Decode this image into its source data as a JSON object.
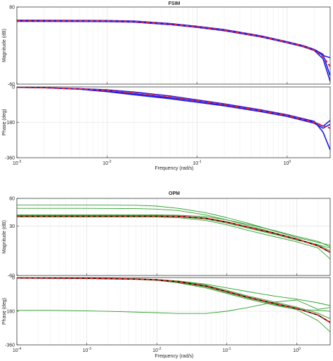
{
  "chart_data": [
    {
      "type": "line",
      "title": "FSIM",
      "xlabel": "Frequency  (rad/s)",
      "xscale": "log",
      "xlim": [
        0.001,
        3
      ],
      "x_ticks": [
        {
          "value": 0.001,
          "base": "10",
          "exp": "-3"
        },
        {
          "value": 0.01,
          "base": "10",
          "exp": "-2"
        },
        {
          "value": 0.1,
          "base": "10",
          "exp": "-1"
        },
        {
          "value": 1,
          "base": "10",
          "exp": "0"
        }
      ],
      "grid": true,
      "series_colors": {
        "nominal": "#e8262a",
        "uncertain": "#1b1bea"
      },
      "panels": [
        {
          "name": "magnitude",
          "ylabel": "Magnitude (dB)",
          "ylim": [
            -60,
            80
          ],
          "y_ticks": [
            {
              "value": 80,
              "label": "80"
            },
            {
              "value": -60,
              "label": "-60"
            }
          ],
          "series": [
            {
              "role": "nominal",
              "style": "dashed",
              "x": [
                0.001,
                0.01,
                0.02,
                0.05,
                0.1,
                0.2,
                0.5,
                1,
                1.5,
                2,
                2.5,
                3
              ],
              "y": [
                55,
                54.5,
                53.5,
                49,
                44,
                38,
                27,
                16,
                9,
                2,
                -10,
                -28
              ]
            },
            {
              "role": "uncertain",
              "style": "solid",
              "x": [
                0.001,
                0.01,
                0.02,
                0.05,
                0.1,
                0.2,
                0.5,
                1,
                1.5,
                2,
                2.5,
                3
              ],
              "y": [
                56,
                55.5,
                54.5,
                50,
                45,
                39,
                28,
                17,
                10,
                3,
                -6,
                -45
              ]
            },
            {
              "role": "uncertain",
              "style": "solid",
              "x": [
                0.001,
                0.01,
                0.02,
                0.05,
                0.1,
                0.2,
                0.5,
                1,
                1.5,
                2,
                2.5,
                3
              ],
              "y": [
                54,
                53.5,
                52.5,
                48,
                43,
                37,
                26,
                15,
                8,
                1,
                -14,
                -55
              ]
            },
            {
              "role": "uncertain",
              "style": "solid",
              "x": [
                0.001,
                0.01,
                0.02,
                0.05,
                0.1,
                0.2,
                0.5,
                1,
                1.5,
                2,
                2.5,
                3
              ],
              "y": [
                55,
                54.5,
                53.5,
                49,
                44,
                38,
                27,
                16,
                9,
                2,
                -8,
                -12
              ]
            }
          ]
        },
        {
          "name": "phase",
          "ylabel": "Phase (deg)",
          "ylim": [
            -360,
            0
          ],
          "y_ticks": [
            {
              "value": 0,
              "label": "0"
            },
            {
              "value": -180,
              "label": "-180"
            },
            {
              "value": -360,
              "label": "-360"
            }
          ],
          "series": [
            {
              "role": "nominal",
              "style": "dashed",
              "x": [
                0.001,
                0.002,
                0.005,
                0.01,
                0.02,
                0.05,
                0.1,
                0.2,
                0.5,
                1,
                2,
                3
              ],
              "y": [
                -2,
                -4,
                -10,
                -18,
                -30,
                -50,
                -70,
                -90,
                -120,
                -145,
                -180,
                -210
              ]
            },
            {
              "role": "uncertain",
              "style": "solid",
              "x": [
                0.001,
                0.002,
                0.005,
                0.01,
                0.02,
                0.05,
                0.1,
                0.2,
                0.5,
                1,
                2,
                2.5,
                3
              ],
              "y": [
                -2,
                -4,
                -12,
                -24,
                -40,
                -60,
                -78,
                -96,
                -125,
                -150,
                -185,
                -210,
                -190
              ]
            },
            {
              "role": "uncertain",
              "style": "solid",
              "x": [
                0.001,
                0.002,
                0.005,
                0.01,
                0.02,
                0.05,
                0.1,
                0.2,
                0.5,
                1,
                2,
                2.5,
                3
              ],
              "y": [
                -2,
                -4,
                -9,
                -15,
                -26,
                -46,
                -66,
                -86,
                -116,
                -142,
                -175,
                -230,
                -320
              ]
            },
            {
              "role": "uncertain",
              "style": "solid",
              "x": [
                0.001,
                0.002,
                0.005,
                0.01,
                0.02,
                0.05,
                0.1,
                0.2,
                0.5,
                1,
                2,
                2.5,
                3
              ],
              "y": [
                -2,
                -4,
                -10,
                -20,
                -34,
                -54,
                -72,
                -92,
                -122,
                -147,
                -180,
                -200,
                -170
              ]
            }
          ]
        }
      ]
    },
    {
      "type": "line",
      "title": "OPM",
      "xlabel": "Frequency  (rad/s)",
      "xscale": "log",
      "xlim": [
        0.0001,
        3
      ],
      "x_ticks": [
        {
          "value": 0.0001,
          "base": "10",
          "exp": "-4"
        },
        {
          "value": 0.001,
          "base": "10",
          "exp": "-3"
        },
        {
          "value": 0.01,
          "base": "10",
          "exp": "-2"
        },
        {
          "value": 0.1,
          "base": "10",
          "exp": "-1"
        },
        {
          "value": 1,
          "base": "10",
          "exp": "0"
        }
      ],
      "grid": true,
      "series_colors": {
        "nominal": "#e8262a",
        "uncertain": "#2ca02c",
        "reference": "#000000"
      },
      "panels": [
        {
          "name": "magnitude",
          "ylabel": "Magnitude (dB)",
          "ylim": [
            -60,
            80
          ],
          "y_ticks": [
            {
              "value": 80,
              "label": "80"
            },
            {
              "value": 30,
              "label": "30"
            },
            {
              "value": -60,
              "label": "-60"
            }
          ],
          "series": [
            {
              "role": "reference",
              "style": "solid",
              "x": [
                0.0001,
                0.001,
                0.01,
                0.02,
                0.05,
                0.1,
                0.2,
                0.5,
                1,
                2,
                3
              ],
              "y": [
                48,
                48,
                48,
                47.5,
                44,
                37,
                28,
                16,
                6,
                -6,
                -18
              ]
            },
            {
              "role": "nominal",
              "style": "dashed",
              "x": [
                0.0001,
                0.001,
                0.01,
                0.02,
                0.05,
                0.1,
                0.2,
                0.5,
                1,
                2,
                3
              ],
              "y": [
                48,
                48,
                48,
                47.5,
                44,
                37,
                28,
                16,
                6,
                -6,
                -18
              ]
            },
            {
              "role": "uncertain",
              "style": "solid",
              "x": [
                0.0001,
                0.001,
                0.005,
                0.01,
                0.02,
                0.05,
                0.1,
                0.2,
                0.5,
                1,
                2,
                3
              ],
              "y": [
                68,
                68,
                67.5,
                66,
                62,
                54,
                45,
                35,
                20,
                9,
                0,
                -5
              ]
            },
            {
              "role": "uncertain",
              "style": "solid",
              "x": [
                0.0001,
                0.001,
                0.005,
                0.01,
                0.02,
                0.05,
                0.1,
                0.2,
                0.5,
                1,
                2,
                3
              ],
              "y": [
                62,
                62,
                61.5,
                60.5,
                58,
                50,
                41,
                31,
                17,
                6,
                -4,
                -15
              ]
            },
            {
              "role": "uncertain",
              "style": "solid",
              "x": [
                0.0001,
                0.001,
                0.01,
                0.02,
                0.05,
                0.1,
                0.2,
                0.5,
                1,
                2,
                3
              ],
              "y": [
                50,
                50,
                50,
                49.5,
                47,
                41,
                33,
                21,
                11,
                2,
                -8
              ]
            },
            {
              "role": "uncertain",
              "style": "solid",
              "x": [
                0.0001,
                0.001,
                0.01,
                0.02,
                0.05,
                0.1,
                0.2,
                0.5,
                1,
                2,
                3
              ],
              "y": [
                46,
                46,
                46,
                45,
                40,
                32,
                22,
                10,
                1,
                -10,
                -30
              ]
            },
            {
              "role": "uncertain",
              "style": "solid",
              "x": [
                0.0001,
                0.001,
                0.01,
                0.02,
                0.05,
                0.1,
                0.2,
                0.5,
                1,
                2,
                3
              ],
              "y": [
                47,
                47,
                47,
                46.5,
                42.5,
                35,
                26,
                14,
                4,
                -4,
                -10
              ]
            }
          ]
        },
        {
          "name": "phase",
          "ylabel": "Phase (deg)",
          "ylim": [
            -360,
            0
          ],
          "y_ticks": [
            {
              "value": 0,
              "label": "0"
            },
            {
              "value": -180,
              "label": "-180"
            },
            {
              "value": -360,
              "label": "-360"
            }
          ],
          "series": [
            {
              "role": "reference",
              "style": "solid",
              "x": [
                0.0001,
                0.001,
                0.005,
                0.01,
                0.02,
                0.05,
                0.1,
                0.2,
                0.5,
                1,
                2,
                3
              ],
              "y": [
                -2,
                -4,
                -8,
                -12,
                -22,
                -45,
                -75,
                -105,
                -140,
                -165,
                -200,
                -240
              ]
            },
            {
              "role": "nominal",
              "style": "dashed",
              "x": [
                0.0001,
                0.001,
                0.005,
                0.01,
                0.02,
                0.05,
                0.1,
                0.2,
                0.5,
                1,
                2,
                3
              ],
              "y": [
                -2,
                -4,
                -8,
                -12,
                -22,
                -45,
                -75,
                -105,
                -140,
                -165,
                -200,
                -240
              ]
            },
            {
              "role": "uncertain",
              "style": "solid",
              "x": [
                0.0001,
                0.0003,
                0.001,
                0.003,
                0.01,
                0.02,
                0.05,
                0.1,
                0.2,
                0.5,
                1,
                2,
                3
              ],
              "y": [
                -175,
                -175,
                -178,
                -182,
                -188,
                -192,
                -192,
                -180,
                -160,
                -130,
                -120,
                -170,
                -160
              ]
            },
            {
              "role": "uncertain",
              "style": "solid",
              "x": [
                0.0001,
                0.001,
                0.005,
                0.01,
                0.02,
                0.05,
                0.1,
                0.2,
                0.5,
                1,
                2,
                3
              ],
              "y": [
                -2,
                -3,
                -6,
                -10,
                -18,
                -35,
                -55,
                -75,
                -100,
                -115,
                -135,
                -150
              ]
            },
            {
              "role": "uncertain",
              "style": "solid",
              "x": [
                0.0001,
                0.001,
                0.005,
                0.01,
                0.02,
                0.05,
                0.1,
                0.2,
                0.5,
                1,
                2,
                3
              ],
              "y": [
                -2,
                -5,
                -10,
                -15,
                -28,
                -55,
                -85,
                -115,
                -150,
                -170,
                -175,
                -180
              ]
            },
            {
              "role": "uncertain",
              "style": "solid",
              "x": [
                0.0001,
                0.001,
                0.005,
                0.01,
                0.02,
                0.05,
                0.1,
                0.2,
                0.5,
                1,
                2,
                3
              ],
              "y": [
                -2,
                -4,
                -9,
                -14,
                -25,
                -50,
                -80,
                -110,
                -145,
                -172,
                -230,
                -290
              ]
            },
            {
              "role": "uncertain",
              "style": "solid",
              "x": [
                0.0001,
                0.001,
                0.005,
                0.01,
                0.02,
                0.05,
                0.1,
                0.2,
                0.5,
                1,
                2,
                3
              ],
              "y": [
                -2,
                -4,
                -7,
                -11,
                -20,
                -40,
                -68,
                -98,
                -132,
                -158,
                -190,
                -220
              ]
            }
          ]
        }
      ]
    }
  ]
}
